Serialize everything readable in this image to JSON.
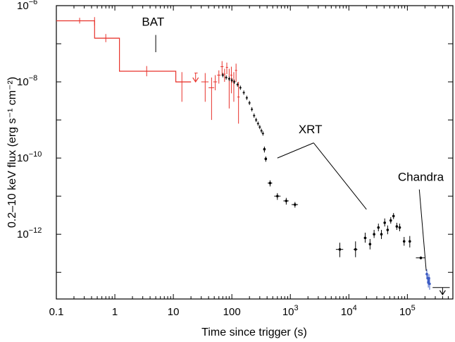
{
  "chart_data": {
    "type": "scatter",
    "title": "",
    "xlabel": "Time since trigger (s)",
    "ylabel": "0.2–10 keV flux (erg s⁻¹ cm⁻²)",
    "x_scale": "log",
    "y_scale": "log",
    "xlim": [
      0.1,
      600000
    ],
    "ylim": [
      2e-14,
      1e-06
    ],
    "grid": false,
    "legend": "none",
    "x_ticks": [
      {
        "value": 0.1,
        "label": "0.1"
      },
      {
        "value": 1,
        "label": "1"
      },
      {
        "value": 10,
        "label": "10"
      },
      {
        "value": 100,
        "label": "100"
      },
      {
        "value": 1000,
        "label": "10",
        "sup": "3"
      },
      {
        "value": 10000,
        "label": "10",
        "sup": "4"
      },
      {
        "value": 100000,
        "label": "10",
        "sup": "5"
      }
    ],
    "y_ticks": [
      {
        "value": 1e-06,
        "label": "10",
        "sup": "−6"
      },
      {
        "value": 1e-08,
        "label": "10",
        "sup": "−8"
      },
      {
        "value": 1e-10,
        "label": "10",
        "sup": "−10"
      },
      {
        "value": 1e-12,
        "label": "10",
        "sup": "−12"
      }
    ],
    "series": [
      {
        "name": "BAT",
        "color": "#e8322b",
        "style": "step",
        "step_segments": [
          {
            "x0": 0.1,
            "x1": 0.45,
            "y": 4e-07
          },
          {
            "x0": 0.45,
            "x1": 1.2,
            "y": 1.4e-07
          },
          {
            "x0": 1.2,
            "x1": 11,
            "y": 1.9e-08
          },
          {
            "x0": 11,
            "x1": 20,
            "y": 1e-08
          }
        ],
        "points": [
          {
            "x": 0.25,
            "y": 4e-07,
            "x_lo": 0.1,
            "x_hi": 0.45,
            "y_lo": 3.4e-07,
            "y_hi": 4.8e-07
          },
          {
            "x": 0.45,
            "y": 4e-07,
            "x_lo": 0.35,
            "x_hi": 0.45,
            "y_lo": 3e-07,
            "y_hi": 5e-07
          },
          {
            "x": 0.7,
            "y": 1.4e-07,
            "x_lo": 0.45,
            "x_hi": 1.2,
            "y_lo": 1.1e-07,
            "y_hi": 1.8e-07
          },
          {
            "x": 3.5,
            "y": 1.9e-08,
            "x_lo": 1.2,
            "x_hi": 11,
            "y_lo": 1.4e-08,
            "y_hi": 2.6e-08
          },
          {
            "x": 14,
            "y": 1e-08,
            "x_lo": 11,
            "x_hi": 20,
            "y_lo": 3e-09,
            "y_hi": 1.8e-08
          },
          {
            "x": 24,
            "y": 1.7e-08,
            "x_lo": 23,
            "x_hi": 26,
            "y_lo": 1e-08,
            "y_hi": 1.7e-08,
            "upper_limit": true
          },
          {
            "x": 35,
            "y": 1e-08,
            "x_lo": 30,
            "x_hi": 40,
            "y_lo": 3e-09,
            "y_hi": 1.7e-08
          },
          {
            "x": 45,
            "y": 7e-09,
            "x_lo": 40,
            "x_hi": 50,
            "y_lo": 1e-09,
            "y_hi": 1.3e-08
          },
          {
            "x": 52,
            "y": 1e-08,
            "x_lo": 48,
            "x_hi": 56,
            "y_lo": 6e-09,
            "y_hi": 1.5e-08
          },
          {
            "x": 60,
            "y": 1.5e-08,
            "x_lo": 56,
            "x_hi": 64,
            "y_lo": 9e-09,
            "y_hi": 2e-08
          },
          {
            "x": 68,
            "y": 2.5e-08,
            "x_lo": 64,
            "x_hi": 72,
            "y_lo": 1.5e-08,
            "y_hi": 3.5e-08
          },
          {
            "x": 75,
            "y": 1.6e-08,
            "x_lo": 72,
            "x_hi": 78,
            "y_lo": 1e-08,
            "y_hi": 2.2e-08
          },
          {
            "x": 82,
            "y": 2.4e-08,
            "x_lo": 79,
            "x_hi": 86,
            "y_lo": 1.6e-08,
            "y_hi": 3.2e-08
          },
          {
            "x": 90,
            "y": 1.2e-08,
            "x_lo": 86,
            "x_hi": 94,
            "y_lo": 2e-09,
            "y_hi": 2.2e-08
          },
          {
            "x": 98,
            "y": 1.5e-08,
            "x_lo": 94,
            "x_hi": 102,
            "y_lo": 5e-09,
            "y_hi": 2.5e-08
          },
          {
            "x": 108,
            "y": 1e-08,
            "x_lo": 103,
            "x_hi": 112,
            "y_lo": 3e-09,
            "y_hi": 1.8e-08
          },
          {
            "x": 118,
            "y": 2e-08,
            "x_lo": 113,
            "x_hi": 123,
            "y_lo": 1e-08,
            "y_hi": 3e-08
          },
          {
            "x": 130,
            "y": 4e-09,
            "x_lo": 124,
            "x_hi": 136,
            "y_lo": 8e-10,
            "y_hi": 1e-08
          }
        ]
      },
      {
        "name": "XRT",
        "color": "#000000",
        "style": "points",
        "dense_curve": [
          [
            70,
            1.5e-08
          ],
          [
            80,
            1.3e-08
          ],
          [
            90,
            1.2e-08
          ],
          [
            100,
            1.1e-08
          ],
          [
            110,
            1e-08
          ],
          [
            125,
            8.5e-09
          ],
          [
            140,
            7e-09
          ],
          [
            160,
            5.2e-09
          ],
          [
            180,
            3.8e-09
          ],
          [
            200,
            2.8e-09
          ],
          [
            220,
            1.9e-09
          ],
          [
            240,
            1.3e-09
          ],
          [
            260,
            1e-09
          ],
          [
            280,
            8e-10
          ],
          [
            300,
            6.5e-10
          ],
          [
            320,
            5.2e-10
          ],
          [
            340,
            4.4e-10
          ]
        ],
        "points": [
          {
            "x": 360,
            "y": 1.7e-10,
            "x_lo": 350,
            "x_hi": 370,
            "y_lo": 1.4e-10,
            "y_hi": 2e-10
          },
          {
            "x": 380,
            "y": 9.5e-11,
            "x_lo": 370,
            "x_hi": 390,
            "y_lo": 8e-11,
            "y_hi": 1.1e-10
          },
          {
            "x": 450,
            "y": 2.2e-11,
            "x_lo": 410,
            "x_hi": 490,
            "y_lo": 1.8e-11,
            "y_hi": 2.6e-11
          },
          {
            "x": 600,
            "y": 1e-11,
            "x_lo": 530,
            "x_hi": 680,
            "y_lo": 8e-12,
            "y_hi": 1.2e-11
          },
          {
            "x": 850,
            "y": 7.5e-12,
            "x_lo": 760,
            "x_hi": 940,
            "y_lo": 6e-12,
            "y_hi": 9e-12
          },
          {
            "x": 1200,
            "y": 6e-12,
            "x_lo": 1050,
            "x_hi": 1350,
            "y_lo": 5e-12,
            "y_hi": 7e-12
          },
          {
            "x": 7000,
            "y": 4e-13,
            "x_lo": 6000,
            "x_hi": 8000,
            "y_lo": 2.5e-13,
            "y_hi": 6e-13
          },
          {
            "x": 13000,
            "y": 4e-13,
            "x_lo": 12000,
            "x_hi": 14000,
            "y_lo": 2.5e-13,
            "y_hi": 6.5e-13
          },
          {
            "x": 19000,
            "y": 8e-13,
            "x_lo": 18000,
            "x_hi": 20000,
            "y_lo": 6e-13,
            "y_hi": 1.1e-12
          },
          {
            "x": 23000,
            "y": 5.5e-13,
            "x_lo": 22000,
            "x_hi": 24000,
            "y_lo": 4e-13,
            "y_hi": 7.5e-13
          },
          {
            "x": 27000,
            "y": 1e-12,
            "x_lo": 26000,
            "x_hi": 28000,
            "y_lo": 8e-13,
            "y_hi": 1.3e-12
          },
          {
            "x": 32000,
            "y": 1.5e-12,
            "x_lo": 31000,
            "x_hi": 33000,
            "y_lo": 1.2e-12,
            "y_hi": 1.9e-12
          },
          {
            "x": 36000,
            "y": 1e-12,
            "x_lo": 35000,
            "x_hi": 37000,
            "y_lo": 7.5e-13,
            "y_hi": 1.3e-12
          },
          {
            "x": 41000,
            "y": 2e-12,
            "x_lo": 40000,
            "x_hi": 42000,
            "y_lo": 1.6e-12,
            "y_hi": 2.6e-12
          },
          {
            "x": 46000,
            "y": 1.3e-12,
            "x_lo": 45000,
            "x_hi": 47000,
            "y_lo": 1e-12,
            "y_hi": 1.7e-12
          },
          {
            "x": 52000,
            "y": 2.3e-12,
            "x_lo": 51000,
            "x_hi": 53000,
            "y_lo": 1.9e-12,
            "y_hi": 2.8e-12
          },
          {
            "x": 58000,
            "y": 3e-12,
            "x_lo": 57000,
            "x_hi": 59000,
            "y_lo": 2.5e-12,
            "y_hi": 3.6e-12
          },
          {
            "x": 66000,
            "y": 1.6e-12,
            "x_lo": 64000,
            "x_hi": 68000,
            "y_lo": 1.3e-12,
            "y_hi": 2e-12
          },
          {
            "x": 74000,
            "y": 1.5e-12,
            "x_lo": 72000,
            "x_hi": 76000,
            "y_lo": 1.2e-12,
            "y_hi": 1.9e-12
          },
          {
            "x": 88000,
            "y": 6.5e-13,
            "x_lo": 85000,
            "x_hi": 92000,
            "y_lo": 5e-13,
            "y_hi": 8.5e-13
          },
          {
            "x": 110000,
            "y": 6.5e-13,
            "x_lo": 106000,
            "x_hi": 114000,
            "y_lo": 4.5e-13,
            "y_hi": 9e-13
          },
          {
            "x": 170000,
            "y": 2.4e-13,
            "x_lo": 140000,
            "x_hi": 200000,
            "y_lo": 2.2e-13,
            "y_hi": 2.6e-13
          },
          {
            "x": 400000,
            "y": 4e-14,
            "x_lo": 270000,
            "x_hi": 530000,
            "y_lo": 2.6e-14,
            "y_hi": 4e-14,
            "upper_limit": true
          }
        ]
      },
      {
        "name": "Chandra",
        "color": "#3b5bc4",
        "style": "points",
        "points": [
          {
            "x": 215000,
            "y": 9e-14,
            "x_lo": 212000,
            "x_hi": 218000,
            "y_lo": 7e-14,
            "y_hi": 1.2e-13
          },
          {
            "x": 222000,
            "y": 7e-14,
            "x_lo": 219000,
            "x_hi": 225000,
            "y_lo": 5e-14,
            "y_hi": 9.5e-14
          },
          {
            "x": 228000,
            "y": 5.5e-14,
            "x_lo": 225000,
            "x_hi": 231000,
            "y_lo": 4e-14,
            "y_hi": 7.5e-14
          },
          {
            "x": 234000,
            "y": 7e-14,
            "x_lo": 231000,
            "x_hi": 237000,
            "y_lo": 5e-14,
            "y_hi": 9e-14
          },
          {
            "x": 240000,
            "y": 5e-14,
            "x_lo": 237000,
            "x_hi": 243000,
            "y_lo": 3.5e-14,
            "y_hi": 7e-14
          }
        ]
      }
    ],
    "annotations": [
      {
        "text": "BAT",
        "anchor": [
          4.5,
          3e-07
        ],
        "pointer": [
          [
            5.0,
            1.7e-07
          ],
          [
            5.0,
            6e-08
          ]
        ]
      },
      {
        "text": "XRT",
        "anchor": [
          2200,
          4.5e-10
        ],
        "pointer": [
          [
            2500,
            2.5e-10
          ],
          [
            600,
            1e-10
          ]
        ],
        "pointer2": [
          [
            2500,
            2.5e-10
          ],
          [
            20000,
            4.5e-12
          ]
        ]
      },
      {
        "text": "Chandra",
        "anchor": [
          170000,
          2.5e-11
        ],
        "pointer": [
          [
            160000,
            1.5e-11
          ],
          [
            210000,
            1.1e-13
          ]
        ]
      }
    ]
  }
}
